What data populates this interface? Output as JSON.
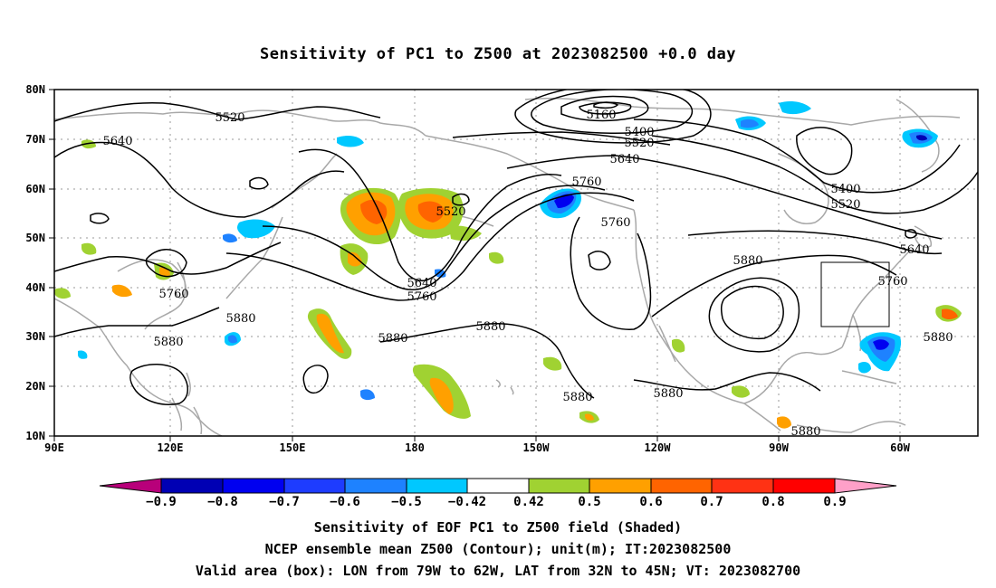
{
  "title": "Sensitivity of PC1 to Z500 at 2023082500 +0.0 day",
  "map": {
    "lat_labels": [
      "80N",
      "70N",
      "60N",
      "50N",
      "40N",
      "30N",
      "20N",
      "10N"
    ],
    "lon_labels": [
      "90E",
      "120E",
      "150E",
      "180",
      "150W",
      "120W",
      "90W",
      "60W"
    ],
    "contour_labels": [
      "5520",
      "5640",
      "5160",
      "5400",
      "5520",
      "5640",
      "5760",
      "5520",
      "5760",
      "5400",
      "5520",
      "5880",
      "5640",
      "5760",
      "5760",
      "5640",
      "5760",
      "5880",
      "5880",
      "5880",
      "5880",
      "5880",
      "5880",
      "5880",
      "5880"
    ],
    "colors": {
      "contour": "#000000",
      "coastline": "#a8a8a8",
      "grid": "#999999"
    },
    "valid_box": {
      "lon": [
        "79W",
        "62W"
      ],
      "lat": [
        "32N",
        "45N"
      ]
    }
  },
  "colorbar": {
    "colors": [
      "#b8007a",
      "#0000b4",
      "#0000f0",
      "#1e3cff",
      "#1e82ff",
      "#00c8ff",
      "#ffffff",
      "#a0d232",
      "#ffa000",
      "#ff6400",
      "#ff3214",
      "#ff0000",
      "#ffa0c8"
    ],
    "labels": [
      "−0.9",
      "−0.8",
      "−0.7",
      "−0.6",
      "−0.5",
      "−0.42",
      "0.42",
      "0.5",
      "0.6",
      "0.7",
      "0.8",
      "0.9"
    ]
  },
  "captions": {
    "line1": "Sensitivity of EOF PC1 to Z500 field (Shaded)",
    "line2": "NCEP ensemble mean Z500 (Contour); unit(m); IT:2023082500",
    "line3": "Valid area (box): LON from 79W to 62W, LAT from 32N to 45N; VT: 2023082700"
  }
}
